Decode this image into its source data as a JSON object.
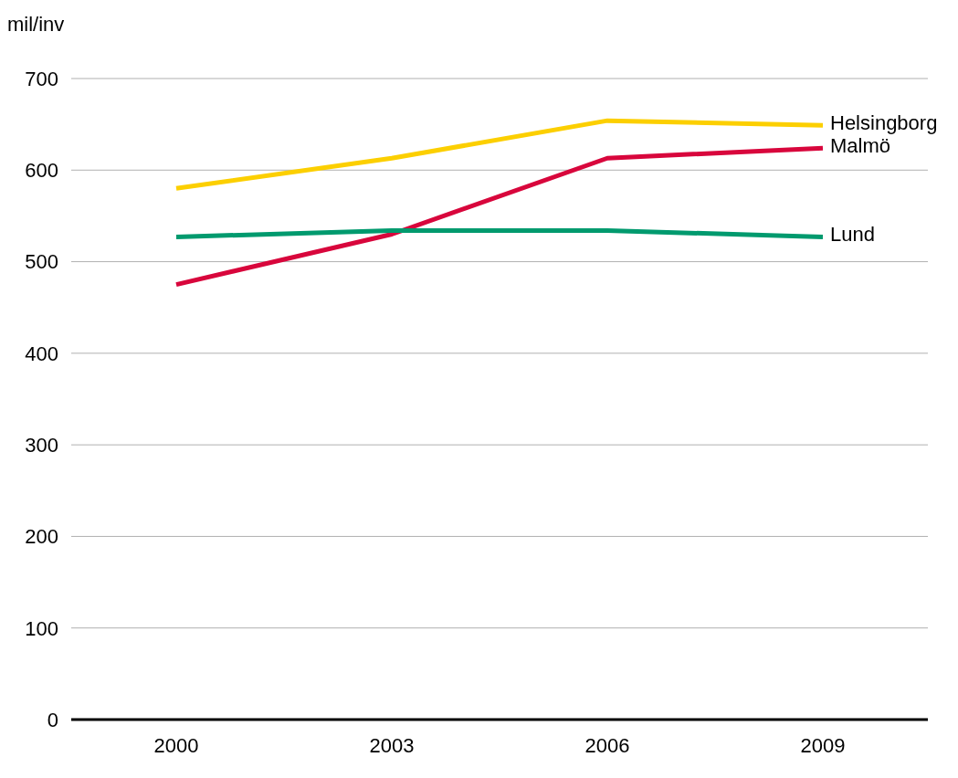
{
  "chart_data": {
    "type": "line",
    "ylabel": "mil/inv",
    "categories": [
      "2000",
      "2003",
      "2006",
      "2009"
    ],
    "series": [
      {
        "name": "Helsingborg",
        "color": "#fccf00",
        "values": [
          580,
          613,
          654,
          649
        ]
      },
      {
        "name": "Malmö",
        "color": "#d8063c",
        "values": [
          475,
          530,
          613,
          624
        ]
      },
      {
        "name": "Lund",
        "color": "#009a6e",
        "values": [
          527,
          534,
          534,
          527
        ]
      }
    ],
    "ylim": [
      0,
      700
    ],
    "yticks": [
      0,
      100,
      200,
      300,
      400,
      500,
      600,
      700
    ],
    "grid": "y",
    "marker": "none",
    "line_style": "solid"
  }
}
